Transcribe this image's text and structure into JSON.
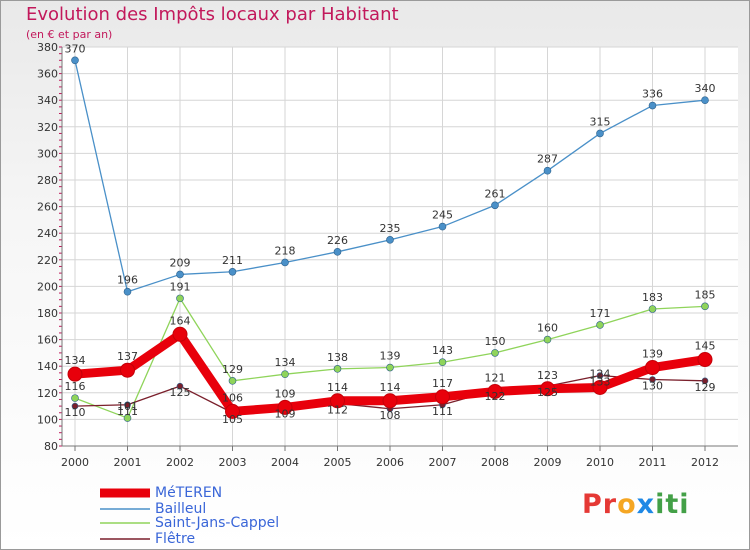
{
  "chart_data": {
    "type": "line",
    "title": "Evolution des Impôts locaux par Habitant",
    "subtitle": "(en € et par an)",
    "xlabel": "",
    "ylabel": "",
    "ylim": [
      80,
      380
    ],
    "y_ticks": [
      80,
      100,
      120,
      140,
      160,
      180,
      200,
      220,
      240,
      260,
      280,
      300,
      320,
      340,
      360,
      380
    ],
    "categories": [
      "2000",
      "2001",
      "2002",
      "2003",
      "2004",
      "2005",
      "2006",
      "2007",
      "2008",
      "2009",
      "2010",
      "2011",
      "2012"
    ],
    "grid": true,
    "legend_position": "bottom-left",
    "series": [
      {
        "name": "MéTEREN",
        "color": "#e8000b",
        "values": [
          134,
          137,
          164,
          106,
          109,
          114,
          114,
          117,
          121,
          123,
          124,
          139,
          145
        ]
      },
      {
        "name": "Bailleul",
        "color": "#4a90c8",
        "values": [
          370,
          196,
          209,
          211,
          218,
          226,
          235,
          245,
          261,
          287,
          315,
          336,
          340
        ]
      },
      {
        "name": "Saint-Jans-Cappel",
        "color": "#8fd45a",
        "values": [
          116,
          101,
          191,
          129,
          134,
          138,
          139,
          143,
          150,
          160,
          171,
          183,
          185
        ]
      },
      {
        "name": "Flêtre",
        "color": "#7a1f2b",
        "values": [
          110,
          111,
          125,
          105,
          109,
          112,
          108,
          111,
          122,
          125,
          133,
          130,
          129
        ]
      }
    ]
  },
  "logo": {
    "letters": [
      "Pr",
      "o",
      "x",
      "iti"
    ]
  }
}
